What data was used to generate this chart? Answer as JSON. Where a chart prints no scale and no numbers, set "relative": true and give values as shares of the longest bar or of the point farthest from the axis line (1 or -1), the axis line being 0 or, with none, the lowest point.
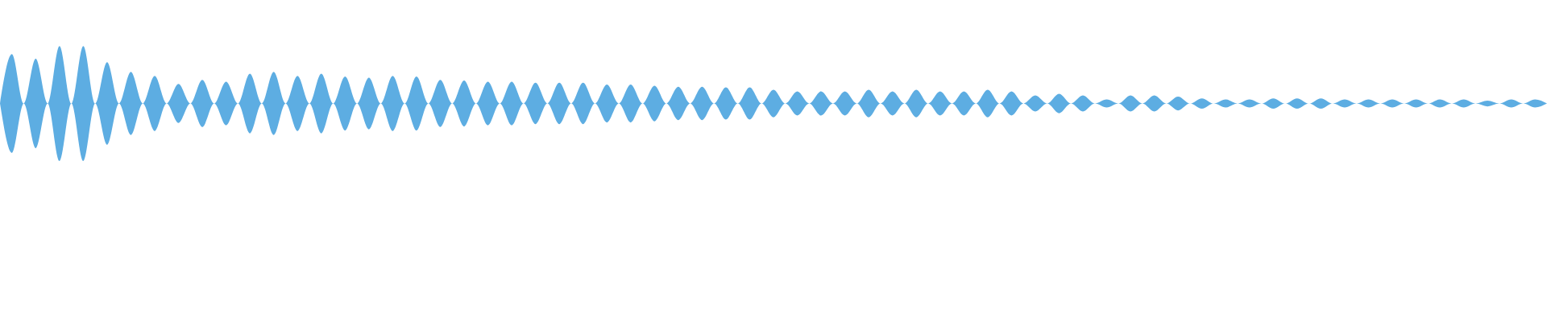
{
  "chart_data": {
    "type": "area",
    "relative": true,
    "categories": [
      null,
      null,
      null,
      null,
      null,
      null,
      null,
      null,
      null,
      null,
      null,
      null,
      null,
      null,
      null,
      null,
      null,
      null,
      null,
      null,
      null,
      null,
      null,
      null,
      null,
      null,
      null,
      null,
      null,
      null,
      null,
      null,
      null,
      null,
      null,
      null,
      null,
      null,
      null,
      null,
      null,
      null,
      null,
      null,
      null,
      null,
      null,
      null,
      null,
      null,
      null,
      null,
      null,
      null,
      null,
      null,
      null,
      null,
      null,
      null,
      null,
      null,
      null,
      null,
      null,
      null,
      null,
      null,
      null,
      null,
      null,
      null,
      null,
      null,
      null,
      null,
      null,
      null,
      null,
      null,
      null,
      null,
      null,
      null,
      null,
      null,
      null,
      null,
      null,
      null,
      null,
      null,
      null,
      null,
      null,
      null,
      null,
      null,
      null,
      null,
      null,
      null,
      null,
      null,
      null,
      null,
      null,
      null,
      null,
      null,
      null,
      null,
      null,
      null,
      null,
      null,
      null,
      null,
      null,
      null,
      null,
      null,
      null,
      null,
      null,
      null,
      null,
      null,
      null,
      null,
      null
    ],
    "series": [
      {
        "color": "#5dade2",
        "values": [
          0,
          0.86,
          0,
          0.78,
          0,
          1,
          0,
          1,
          0,
          0.72,
          0,
          0.55,
          0,
          0.48,
          0,
          0.34,
          0,
          0.41,
          0,
          0.38,
          0,
          0.52,
          0,
          0.55,
          0,
          0.48,
          0,
          0.52,
          0,
          0.47,
          0,
          0.45,
          0,
          0.48,
          0,
          0.47,
          0,
          0.41,
          0,
          0.4,
          0,
          0.38,
          0,
          0.38,
          0,
          0.36,
          0,
          0.36,
          0,
          0.36,
          0,
          0.33,
          0,
          0.33,
          0,
          0.31,
          0,
          0.29,
          0,
          0.29,
          0,
          0.28,
          0,
          0.28,
          0,
          0.24,
          0,
          0.21,
          0,
          0.21,
          0,
          0.21,
          0,
          0.24,
          0,
          0.21,
          0,
          0.24,
          0,
          0.21,
          0,
          0.21,
          0,
          0.24,
          0,
          0.21,
          0,
          0.14,
          0,
          0.17,
          0,
          0.14,
          0,
          0.07,
          0,
          0.14,
          0,
          0.14,
          0,
          0.12,
          0,
          0.09,
          0,
          0.07,
          0,
          0.07,
          0,
          0.09,
          0,
          0.09,
          0,
          0.09,
          0,
          0.07,
          0,
          0.07,
          0,
          0.07,
          0,
          0.07,
          0,
          0.07,
          0,
          0.07,
          0,
          0.05,
          0,
          0.07,
          0,
          0.07,
          0
        ]
      }
    ]
  }
}
